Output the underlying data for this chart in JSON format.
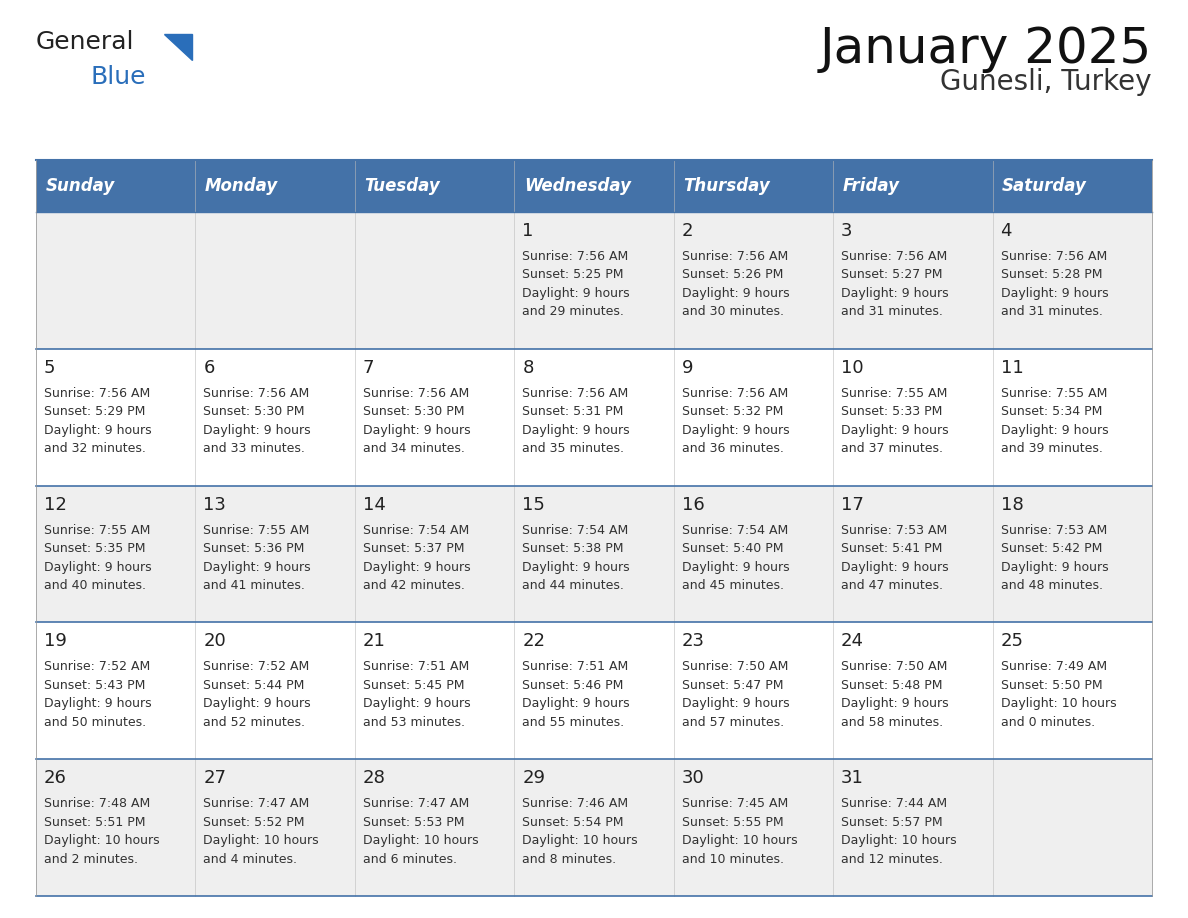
{
  "title": "January 2025",
  "subtitle": "Gunesli, Turkey",
  "header_color": "#4472a8",
  "header_text_color": "#ffffff",
  "row_bg_colors": [
    "#efefef",
    "#ffffff",
    "#efefef",
    "#ffffff",
    "#efefef"
  ],
  "separator_color": "#4472a8",
  "text_color": "#222222",
  "info_color": "#333333",
  "days_of_week": [
    "Sunday",
    "Monday",
    "Tuesday",
    "Wednesday",
    "Thursday",
    "Friday",
    "Saturday"
  ],
  "calendar_data": [
    [
      {
        "day": "",
        "info": ""
      },
      {
        "day": "",
        "info": ""
      },
      {
        "day": "",
        "info": ""
      },
      {
        "day": "1",
        "info": "Sunrise: 7:56 AM\nSunset: 5:25 PM\nDaylight: 9 hours\nand 29 minutes."
      },
      {
        "day": "2",
        "info": "Sunrise: 7:56 AM\nSunset: 5:26 PM\nDaylight: 9 hours\nand 30 minutes."
      },
      {
        "day": "3",
        "info": "Sunrise: 7:56 AM\nSunset: 5:27 PM\nDaylight: 9 hours\nand 31 minutes."
      },
      {
        "day": "4",
        "info": "Sunrise: 7:56 AM\nSunset: 5:28 PM\nDaylight: 9 hours\nand 31 minutes."
      }
    ],
    [
      {
        "day": "5",
        "info": "Sunrise: 7:56 AM\nSunset: 5:29 PM\nDaylight: 9 hours\nand 32 minutes."
      },
      {
        "day": "6",
        "info": "Sunrise: 7:56 AM\nSunset: 5:30 PM\nDaylight: 9 hours\nand 33 minutes."
      },
      {
        "day": "7",
        "info": "Sunrise: 7:56 AM\nSunset: 5:30 PM\nDaylight: 9 hours\nand 34 minutes."
      },
      {
        "day": "8",
        "info": "Sunrise: 7:56 AM\nSunset: 5:31 PM\nDaylight: 9 hours\nand 35 minutes."
      },
      {
        "day": "9",
        "info": "Sunrise: 7:56 AM\nSunset: 5:32 PM\nDaylight: 9 hours\nand 36 minutes."
      },
      {
        "day": "10",
        "info": "Sunrise: 7:55 AM\nSunset: 5:33 PM\nDaylight: 9 hours\nand 37 minutes."
      },
      {
        "day": "11",
        "info": "Sunrise: 7:55 AM\nSunset: 5:34 PM\nDaylight: 9 hours\nand 39 minutes."
      }
    ],
    [
      {
        "day": "12",
        "info": "Sunrise: 7:55 AM\nSunset: 5:35 PM\nDaylight: 9 hours\nand 40 minutes."
      },
      {
        "day": "13",
        "info": "Sunrise: 7:55 AM\nSunset: 5:36 PM\nDaylight: 9 hours\nand 41 minutes."
      },
      {
        "day": "14",
        "info": "Sunrise: 7:54 AM\nSunset: 5:37 PM\nDaylight: 9 hours\nand 42 minutes."
      },
      {
        "day": "15",
        "info": "Sunrise: 7:54 AM\nSunset: 5:38 PM\nDaylight: 9 hours\nand 44 minutes."
      },
      {
        "day": "16",
        "info": "Sunrise: 7:54 AM\nSunset: 5:40 PM\nDaylight: 9 hours\nand 45 minutes."
      },
      {
        "day": "17",
        "info": "Sunrise: 7:53 AM\nSunset: 5:41 PM\nDaylight: 9 hours\nand 47 minutes."
      },
      {
        "day": "18",
        "info": "Sunrise: 7:53 AM\nSunset: 5:42 PM\nDaylight: 9 hours\nand 48 minutes."
      }
    ],
    [
      {
        "day": "19",
        "info": "Sunrise: 7:52 AM\nSunset: 5:43 PM\nDaylight: 9 hours\nand 50 minutes."
      },
      {
        "day": "20",
        "info": "Sunrise: 7:52 AM\nSunset: 5:44 PM\nDaylight: 9 hours\nand 52 minutes."
      },
      {
        "day": "21",
        "info": "Sunrise: 7:51 AM\nSunset: 5:45 PM\nDaylight: 9 hours\nand 53 minutes."
      },
      {
        "day": "22",
        "info": "Sunrise: 7:51 AM\nSunset: 5:46 PM\nDaylight: 9 hours\nand 55 minutes."
      },
      {
        "day": "23",
        "info": "Sunrise: 7:50 AM\nSunset: 5:47 PM\nDaylight: 9 hours\nand 57 minutes."
      },
      {
        "day": "24",
        "info": "Sunrise: 7:50 AM\nSunset: 5:48 PM\nDaylight: 9 hours\nand 58 minutes."
      },
      {
        "day": "25",
        "info": "Sunrise: 7:49 AM\nSunset: 5:50 PM\nDaylight: 10 hours\nand 0 minutes."
      }
    ],
    [
      {
        "day": "26",
        "info": "Sunrise: 7:48 AM\nSunset: 5:51 PM\nDaylight: 10 hours\nand 2 minutes."
      },
      {
        "day": "27",
        "info": "Sunrise: 7:47 AM\nSunset: 5:52 PM\nDaylight: 10 hours\nand 4 minutes."
      },
      {
        "day": "28",
        "info": "Sunrise: 7:47 AM\nSunset: 5:53 PM\nDaylight: 10 hours\nand 6 minutes."
      },
      {
        "day": "29",
        "info": "Sunrise: 7:46 AM\nSunset: 5:54 PM\nDaylight: 10 hours\nand 8 minutes."
      },
      {
        "day": "30",
        "info": "Sunrise: 7:45 AM\nSunset: 5:55 PM\nDaylight: 10 hours\nand 10 minutes."
      },
      {
        "day": "31",
        "info": "Sunrise: 7:44 AM\nSunset: 5:57 PM\nDaylight: 10 hours\nand 12 minutes."
      },
      {
        "day": "",
        "info": ""
      }
    ]
  ],
  "logo_general_color": "#222222",
  "logo_blue_color": "#2a6eba",
  "logo_triangle_color": "#2a6eba",
  "title_fontsize": 36,
  "subtitle_fontsize": 20,
  "header_fontsize": 12,
  "day_num_fontsize": 13,
  "info_fontsize": 9
}
